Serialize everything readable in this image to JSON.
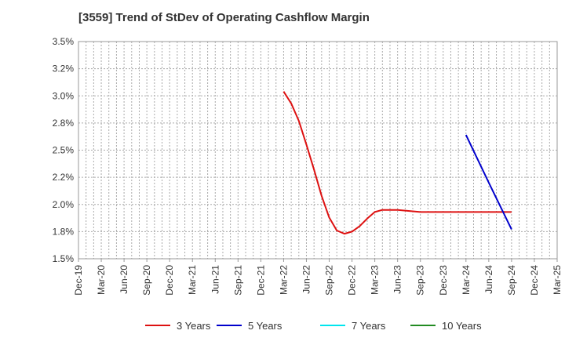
{
  "chart_data": {
    "type": "line",
    "title": "[3559]  Trend of StDev of Operating Cashflow Margin",
    "xlabel": "",
    "ylabel": "",
    "ylim": [
      1.5,
      3.5
    ],
    "yticks": [
      "1.5%",
      "1.8%",
      "2.0%",
      "2.2%",
      "2.5%",
      "2.8%",
      "3.0%",
      "3.2%",
      "3.5%"
    ],
    "ytick_values": [
      1.5,
      1.75,
      2.0,
      2.25,
      2.5,
      2.75,
      3.0,
      3.25,
      3.5
    ],
    "categories": [
      "Dec-19",
      "Mar-20",
      "Jun-20",
      "Sep-20",
      "Dec-20",
      "Mar-21",
      "Jun-21",
      "Sep-21",
      "Dec-21",
      "Mar-22",
      "Jun-22",
      "Sep-22",
      "Dec-22",
      "Mar-23",
      "Jun-23",
      "Sep-23",
      "Dec-23",
      "Mar-24",
      "Jun-24",
      "Sep-24",
      "Dec-24",
      "Mar-25"
    ],
    "grid": true,
    "legend_position": "bottom",
    "series": [
      {
        "name": "3 Years",
        "color": "#dd1111",
        "x": [
          "Mar-22",
          "Apr-22",
          "May-22",
          "Jun-22",
          "Jul-22",
          "Aug-22",
          "Sep-22",
          "Oct-22",
          "Nov-22",
          "Dec-22",
          "Jan-23",
          "Feb-23",
          "Mar-23",
          "Apr-23",
          "May-23",
          "Jun-23",
          "Sep-23",
          "Dec-23",
          "Mar-24",
          "Jun-24",
          "Sep-24"
        ],
        "values": [
          3.04,
          2.93,
          2.77,
          2.55,
          2.32,
          2.08,
          1.88,
          1.76,
          1.73,
          1.75,
          1.8,
          1.87,
          1.93,
          1.95,
          1.95,
          1.95,
          1.93,
          1.93,
          1.93,
          1.93,
          1.93
        ]
      },
      {
        "name": "5 Years",
        "color": "#0000cc",
        "x": [
          "Mar-24",
          "Jun-24",
          "Sep-24"
        ],
        "values": [
          2.64,
          2.2,
          1.77
        ]
      },
      {
        "name": "7 Years",
        "color": "#00e5ee",
        "x": [],
        "values": []
      },
      {
        "name": "10 Years",
        "color": "#228b22",
        "x": [],
        "values": []
      }
    ]
  }
}
